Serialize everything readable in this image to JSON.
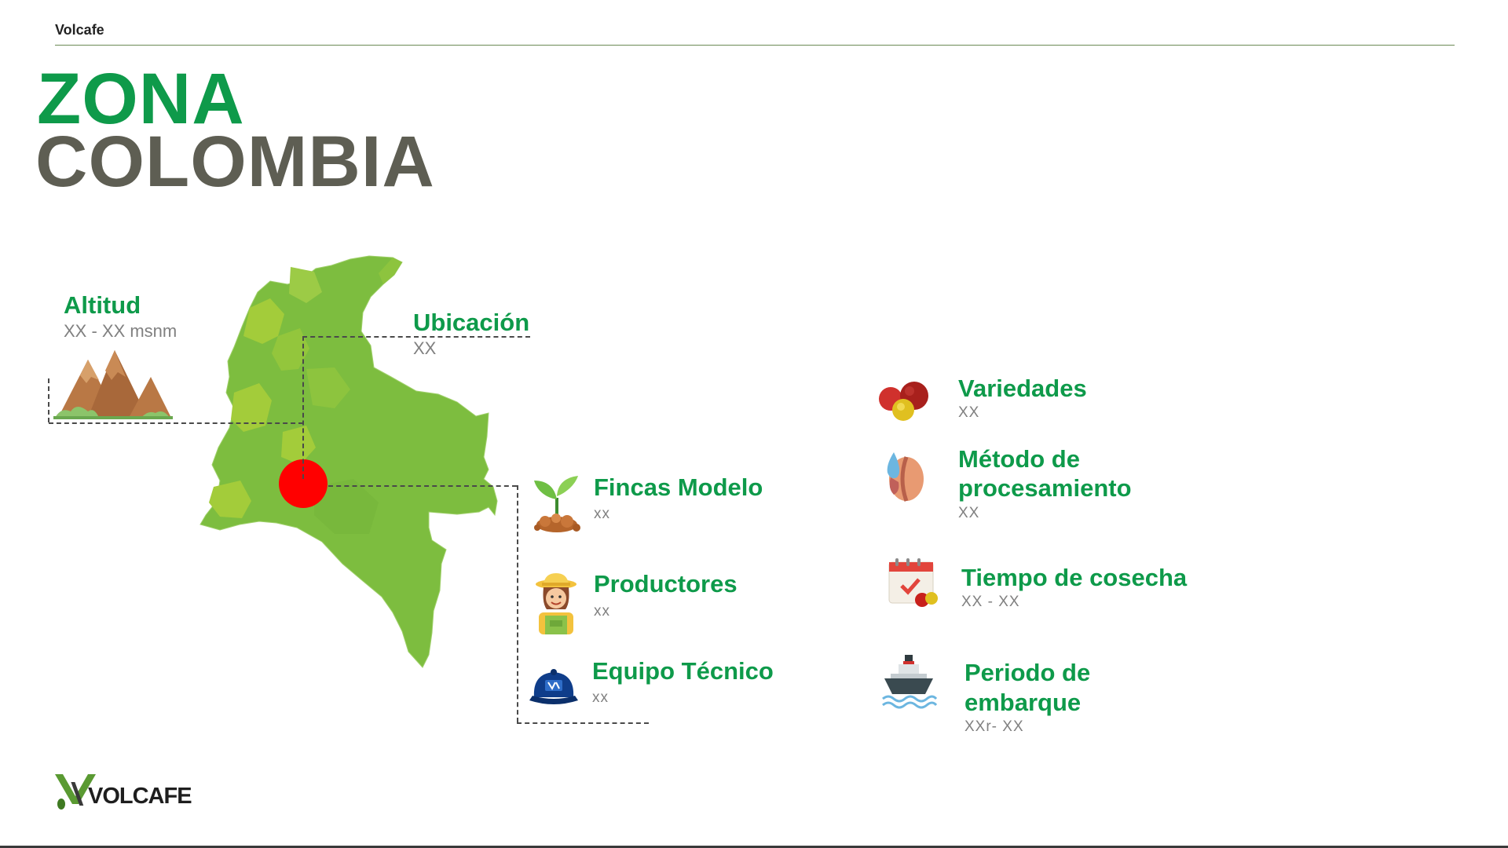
{
  "header": {
    "brand": "Volcafe"
  },
  "title": {
    "line1": "ZONA",
    "line2": "COLOMBIA"
  },
  "altitud": {
    "label": "Altitud",
    "value": "XX - XX msnm"
  },
  "ubicacion": {
    "label": "Ubicación",
    "value": "XX"
  },
  "fincas": {
    "label": "Fincas Modelo",
    "value": "xx"
  },
  "productores": {
    "label": "Productores",
    "value": "xx"
  },
  "equipo": {
    "label": "Equipo Técnico",
    "value": "xx"
  },
  "variedades": {
    "label": "Variedades",
    "value": "XX"
  },
  "metodo": {
    "label_line1": "Método de",
    "label_line2": "procesamiento",
    "value": "XX"
  },
  "tiempo": {
    "label": "Tiempo de cosecha",
    "value": "XX - XX"
  },
  "periodo": {
    "label_line1": "Periodo de",
    "label_line2": "embarque",
    "value": "XXr- XX"
  },
  "footer": {
    "logo_text": "VOLCAFE"
  },
  "colors": {
    "accent_green": "#0e9a4a",
    "title_gray": "#5e5e53",
    "map_green": "#7dbd3f",
    "marker_red": "#ff0000"
  },
  "icons": {
    "altitud": "mountains-icon",
    "fincas": "sprout-icon",
    "productores": "farmer-icon",
    "equipo": "cap-icon",
    "variedades": "coffee-cherries-icon",
    "metodo": "coffee-bean-water-icon",
    "tiempo": "calendar-check-icon",
    "periodo": "ship-icon"
  }
}
